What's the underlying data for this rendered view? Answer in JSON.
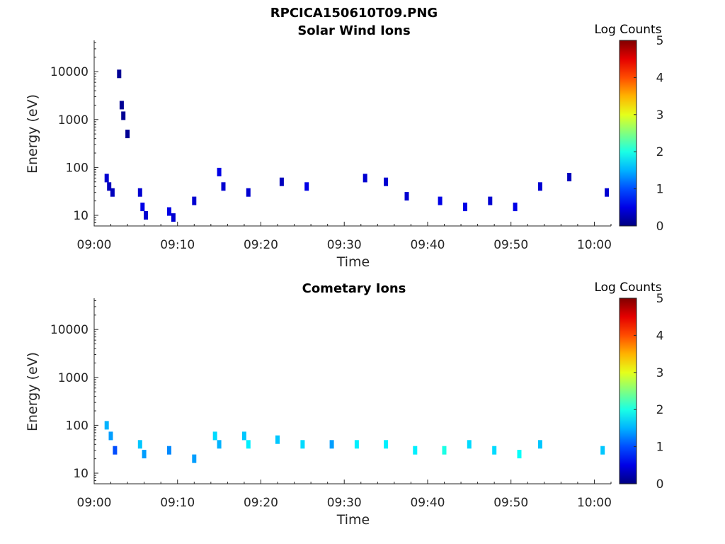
{
  "figure_title": "RPCICA150610T09.PNG",
  "chart_data": [
    {
      "type": "heatmap",
      "title": "Solar Wind Ions",
      "xlabel": "Time",
      "ylabel": "Energy (eV)",
      "x_ticks": [
        "09:00",
        "09:10",
        "09:20",
        "09:30",
        "09:40",
        "09:50",
        "10:00"
      ],
      "x_range_minutes": [
        0,
        62
      ],
      "y_ticks": [
        "10",
        "100",
        "1000",
        "10000"
      ],
      "y_scale": "log",
      "y_range": [
        6,
        45000
      ],
      "colorbar": {
        "label": "Log Counts",
        "ticks": [
          "0",
          "1",
          "2",
          "3",
          "4",
          "5"
        ],
        "range": [
          0,
          5
        ],
        "colormap": "jet"
      },
      "cells": [
        {
          "t": 1.5,
          "e": 60,
          "c": 0.4
        },
        {
          "t": 1.8,
          "e": 40,
          "c": 0.3
        },
        {
          "t": 2.2,
          "e": 30,
          "c": 0.3
        },
        {
          "t": 3.0,
          "e": 9000,
          "c": 0.1
        },
        {
          "t": 3.3,
          "e": 2000,
          "c": 0.1
        },
        {
          "t": 3.5,
          "e": 1200,
          "c": 0.1
        },
        {
          "t": 4.0,
          "e": 500,
          "c": 0.1
        },
        {
          "t": 5.5,
          "e": 30,
          "c": 0.4
        },
        {
          "t": 5.8,
          "e": 15,
          "c": 0.5
        },
        {
          "t": 6.2,
          "e": 10,
          "c": 0.4
        },
        {
          "t": 9.0,
          "e": 12,
          "c": 0.5
        },
        {
          "t": 9.5,
          "e": 9,
          "c": 0.4
        },
        {
          "t": 12.0,
          "e": 20,
          "c": 0.4
        },
        {
          "t": 15.0,
          "e": 80,
          "c": 0.5
        },
        {
          "t": 15.5,
          "e": 40,
          "c": 0.4
        },
        {
          "t": 18.5,
          "e": 30,
          "c": 0.4
        },
        {
          "t": 22.5,
          "e": 50,
          "c": 0.3
        },
        {
          "t": 25.5,
          "e": 40,
          "c": 0.5
        },
        {
          "t": 32.5,
          "e": 60,
          "c": 0.4
        },
        {
          "t": 35.0,
          "e": 50,
          "c": 0.4
        },
        {
          "t": 37.5,
          "e": 25,
          "c": 0.4
        },
        {
          "t": 41.5,
          "e": 20,
          "c": 0.5
        },
        {
          "t": 44.5,
          "e": 15,
          "c": 0.5
        },
        {
          "t": 47.5,
          "e": 20,
          "c": 0.4
        },
        {
          "t": 50.5,
          "e": 15,
          "c": 0.5
        },
        {
          "t": 53.5,
          "e": 40,
          "c": 0.4
        },
        {
          "t": 57.0,
          "e": 63,
          "c": 0.3
        },
        {
          "t": 61.5,
          "e": 30,
          "c": 0.4
        }
      ]
    },
    {
      "type": "heatmap",
      "title": "Cometary Ions",
      "xlabel": "Time",
      "ylabel": "Energy (eV)",
      "x_ticks": [
        "09:00",
        "09:10",
        "09:20",
        "09:30",
        "09:40",
        "09:50",
        "10:00"
      ],
      "x_range_minutes": [
        0,
        62
      ],
      "y_ticks": [
        "10",
        "100",
        "1000",
        "10000"
      ],
      "y_scale": "log",
      "y_range": [
        6,
        45000
      ],
      "colorbar": {
        "label": "Log Counts",
        "ticks": [
          "0",
          "1",
          "2",
          "3",
          "4",
          "5"
        ],
        "range": [
          0,
          5
        ],
        "colormap": "jet"
      },
      "cells": [
        {
          "t": 1.5,
          "e": 100,
          "c": 1.5
        },
        {
          "t": 2.0,
          "e": 60,
          "c": 1.4
        },
        {
          "t": 2.5,
          "e": 30,
          "c": 1.0
        },
        {
          "t": 5.5,
          "e": 40,
          "c": 1.6
        },
        {
          "t": 6.0,
          "e": 25,
          "c": 1.4
        },
        {
          "t": 9.0,
          "e": 30,
          "c": 1.3
        },
        {
          "t": 12.0,
          "e": 20,
          "c": 1.4
        },
        {
          "t": 14.5,
          "e": 60,
          "c": 1.7
        },
        {
          "t": 15.0,
          "e": 40,
          "c": 1.5
        },
        {
          "t": 18.0,
          "e": 60,
          "c": 1.6
        },
        {
          "t": 18.5,
          "e": 40,
          "c": 1.8
        },
        {
          "t": 22.0,
          "e": 50,
          "c": 1.6
        },
        {
          "t": 25.0,
          "e": 40,
          "c": 1.7
        },
        {
          "t": 28.5,
          "e": 40,
          "c": 1.4
        },
        {
          "t": 31.5,
          "e": 40,
          "c": 1.8
        },
        {
          "t": 35.0,
          "e": 40,
          "c": 1.8
        },
        {
          "t": 38.5,
          "e": 30,
          "c": 1.8
        },
        {
          "t": 42.0,
          "e": 30,
          "c": 2.0
        },
        {
          "t": 45.0,
          "e": 40,
          "c": 1.7
        },
        {
          "t": 48.0,
          "e": 30,
          "c": 1.7
        },
        {
          "t": 51.0,
          "e": 25,
          "c": 1.9
        },
        {
          "t": 53.5,
          "e": 40,
          "c": 1.6
        },
        {
          "t": 61.0,
          "e": 30,
          "c": 1.6
        }
      ]
    }
  ]
}
